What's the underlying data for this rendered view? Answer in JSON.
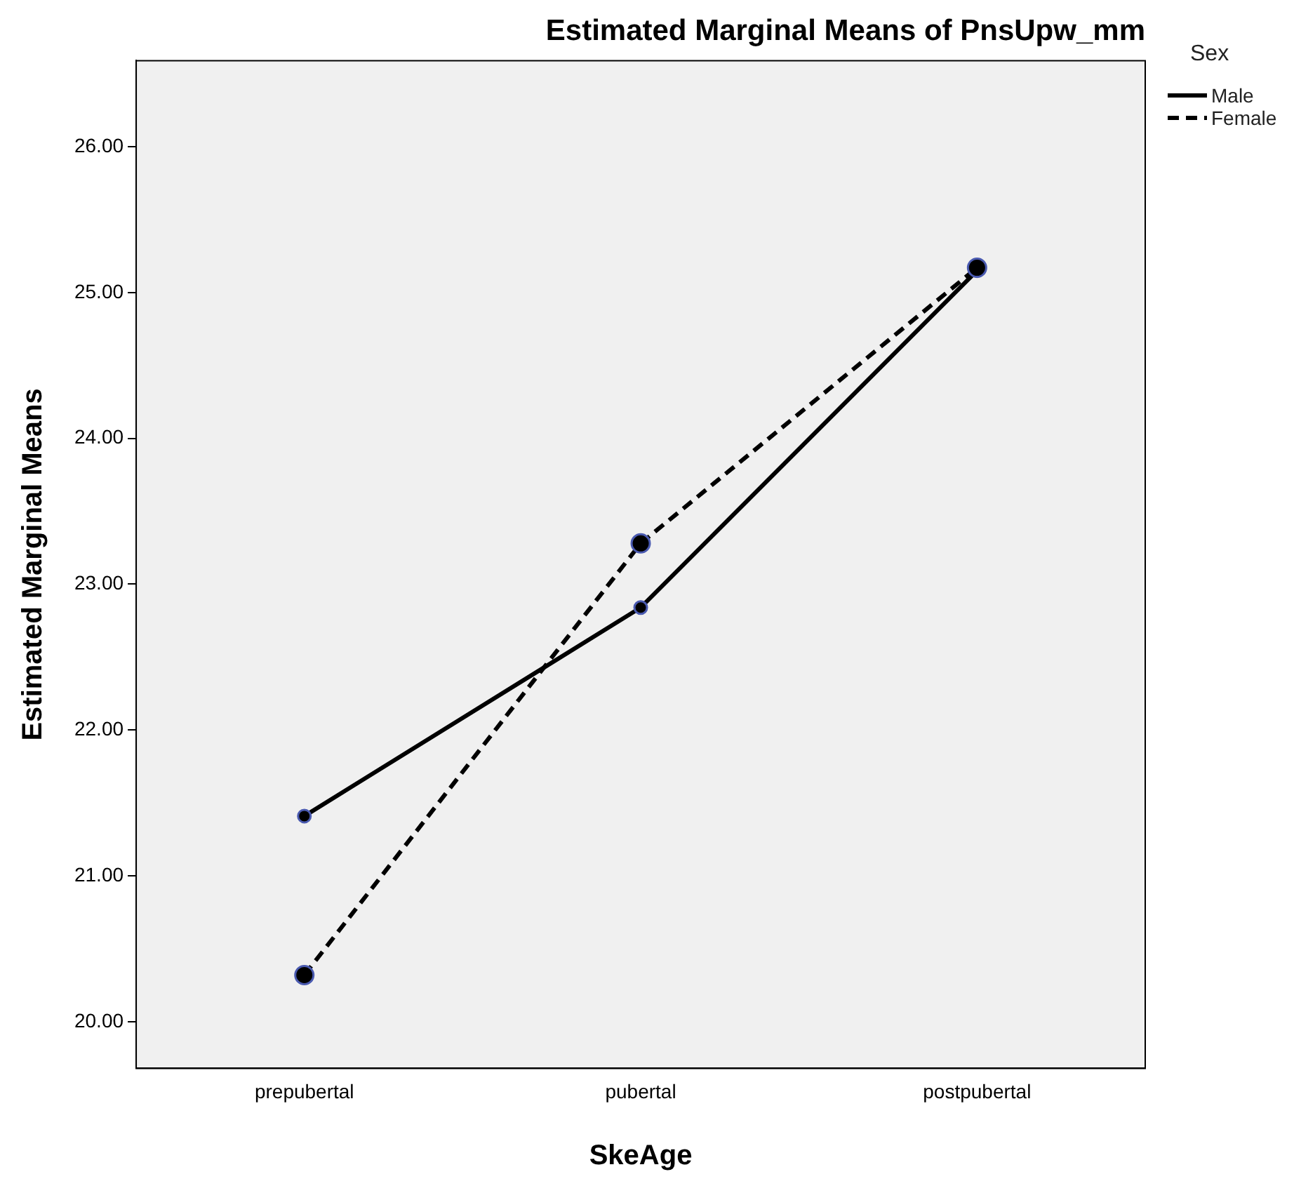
{
  "chart_data": {
    "type": "line",
    "title": "Estimated Marginal Means of PnsUpw_mm",
    "xlabel": "SkeAge",
    "ylabel": "Estimated Marginal Means",
    "legend_title": "Sex",
    "legend": "top right",
    "grid": false,
    "marker": "circle",
    "categories": [
      "prepubertal",
      "pubertal",
      "postpubertal"
    ],
    "ylim": [
      19.68,
      26.59
    ],
    "yticks": [
      {
        "value": 20,
        "label": "20.00"
      },
      {
        "value": 21,
        "label": "21.00"
      },
      {
        "value": 22,
        "label": "22.00"
      },
      {
        "value": 23,
        "label": "23.00"
      },
      {
        "value": 24,
        "label": "24.00"
      },
      {
        "value": 25,
        "label": "25.00"
      },
      {
        "value": 26,
        "label": "26.00"
      }
    ],
    "series": [
      {
        "name": "Male",
        "color": "#000000",
        "line_style": "solid",
        "values": [
          21.41,
          22.84,
          25.15
        ]
      },
      {
        "name": "Female",
        "color": "#000000",
        "line_style": "dashed",
        "values": [
          20.32,
          23.28,
          25.17
        ]
      }
    ]
  }
}
